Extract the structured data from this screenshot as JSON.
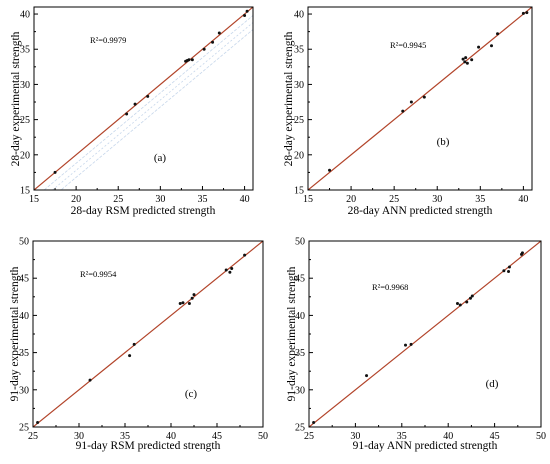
{
  "chart_data": [
    {
      "type": "scatter",
      "panel_label": "(a)",
      "xlabel": "28-day RSM predicted strength",
      "ylabel": "28-day experimental strength",
      "r2_text": "R²=0.9979",
      "xlim": [
        15,
        41
      ],
      "ylim": [
        15,
        41
      ],
      "xticks": [
        15,
        20,
        25,
        30,
        35,
        40
      ],
      "yticks": [
        15,
        20,
        25,
        30,
        35,
        40
      ],
      "fit_line": [
        [
          15,
          15
        ],
        [
          41,
          41
        ]
      ],
      "points": [
        [
          17.5,
          17.5
        ],
        [
          26.0,
          25.8
        ],
        [
          27.0,
          27.2
        ],
        [
          28.5,
          28.3
        ],
        [
          33.0,
          33.3
        ],
        [
          33.2,
          33.4
        ],
        [
          33.4,
          33.5
        ],
        [
          33.8,
          33.5
        ],
        [
          35.2,
          35.0
        ],
        [
          36.2,
          36.0
        ],
        [
          37.0,
          37.3
        ],
        [
          40.0,
          39.8
        ],
        [
          40.3,
          40.4
        ]
      ]
    },
    {
      "type": "scatter",
      "panel_label": "(b)",
      "xlabel": "28-day ANN predicted strength",
      "ylabel": "28-day experimental strength",
      "r2_text": "R²=0.9945",
      "xlim": [
        15,
        41
      ],
      "ylim": [
        15,
        41
      ],
      "xticks": [
        15,
        20,
        25,
        30,
        35,
        40
      ],
      "yticks": [
        15,
        20,
        25,
        30,
        35,
        40
      ],
      "fit_line": [
        [
          15,
          15
        ],
        [
          41,
          41
        ]
      ],
      "points": [
        [
          17.5,
          17.8
        ],
        [
          26.0,
          26.2
        ],
        [
          27.0,
          27.5
        ],
        [
          28.5,
          28.2
        ],
        [
          33.0,
          33.6
        ],
        [
          33.2,
          33.2
        ],
        [
          33.3,
          33.8
        ],
        [
          33.5,
          33.0
        ],
        [
          34.0,
          33.5
        ],
        [
          34.8,
          35.3
        ],
        [
          36.3,
          35.5
        ],
        [
          37.0,
          37.2
        ],
        [
          40.0,
          40.1
        ],
        [
          40.4,
          40.2
        ]
      ]
    },
    {
      "type": "scatter",
      "panel_label": "(c)",
      "xlabel": "91-day RSM predicted strength",
      "ylabel": "91-day experimental strength",
      "r2_text": "R²=0.9954",
      "xlim": [
        25,
        50
      ],
      "ylim": [
        25,
        50
      ],
      "xticks": [
        25,
        30,
        35,
        40,
        45,
        50
      ],
      "yticks": [
        25,
        30,
        35,
        40,
        45,
        50
      ],
      "fit_line": [
        [
          25,
          25
        ],
        [
          50,
          50
        ]
      ],
      "points": [
        [
          25.5,
          25.6
        ],
        [
          31.2,
          31.3
        ],
        [
          35.5,
          34.6
        ],
        [
          36.0,
          36.1
        ],
        [
          41.0,
          41.6
        ],
        [
          41.3,
          41.7
        ],
        [
          42.0,
          41.6
        ],
        [
          42.3,
          42.3
        ],
        [
          42.5,
          42.8
        ],
        [
          46.0,
          46.1
        ],
        [
          46.4,
          45.8
        ],
        [
          46.6,
          46.3
        ],
        [
          48.0,
          48.1
        ]
      ]
    },
    {
      "type": "scatter",
      "panel_label": "(d)",
      "xlabel": "91-day ANN predicted strength",
      "ylabel": "91-day experimental strength",
      "r2_text": "R²=0.9968",
      "xlim": [
        25,
        50
      ],
      "ylim": [
        25,
        50
      ],
      "xticks": [
        25,
        30,
        35,
        40,
        45,
        50
      ],
      "yticks": [
        25,
        30,
        35,
        40,
        45,
        50
      ],
      "fit_line": [
        [
          25,
          25
        ],
        [
          50,
          50
        ]
      ],
      "points": [
        [
          25.5,
          25.6
        ],
        [
          31.2,
          31.9
        ],
        [
          35.4,
          36.0
        ],
        [
          36.0,
          36.1
        ],
        [
          41.0,
          41.6
        ],
        [
          41.3,
          41.4
        ],
        [
          42.0,
          41.8
        ],
        [
          42.4,
          42.3
        ],
        [
          42.6,
          42.6
        ],
        [
          46.0,
          46.0
        ],
        [
          46.5,
          45.9
        ],
        [
          46.6,
          46.5
        ],
        [
          47.9,
          48.2
        ],
        [
          48.0,
          48.4
        ]
      ]
    }
  ],
  "colors": {
    "fit_line": "#b2442a",
    "points": "#111111",
    "axes": "#000000",
    "shadow_lines": "#b9cde6"
  }
}
